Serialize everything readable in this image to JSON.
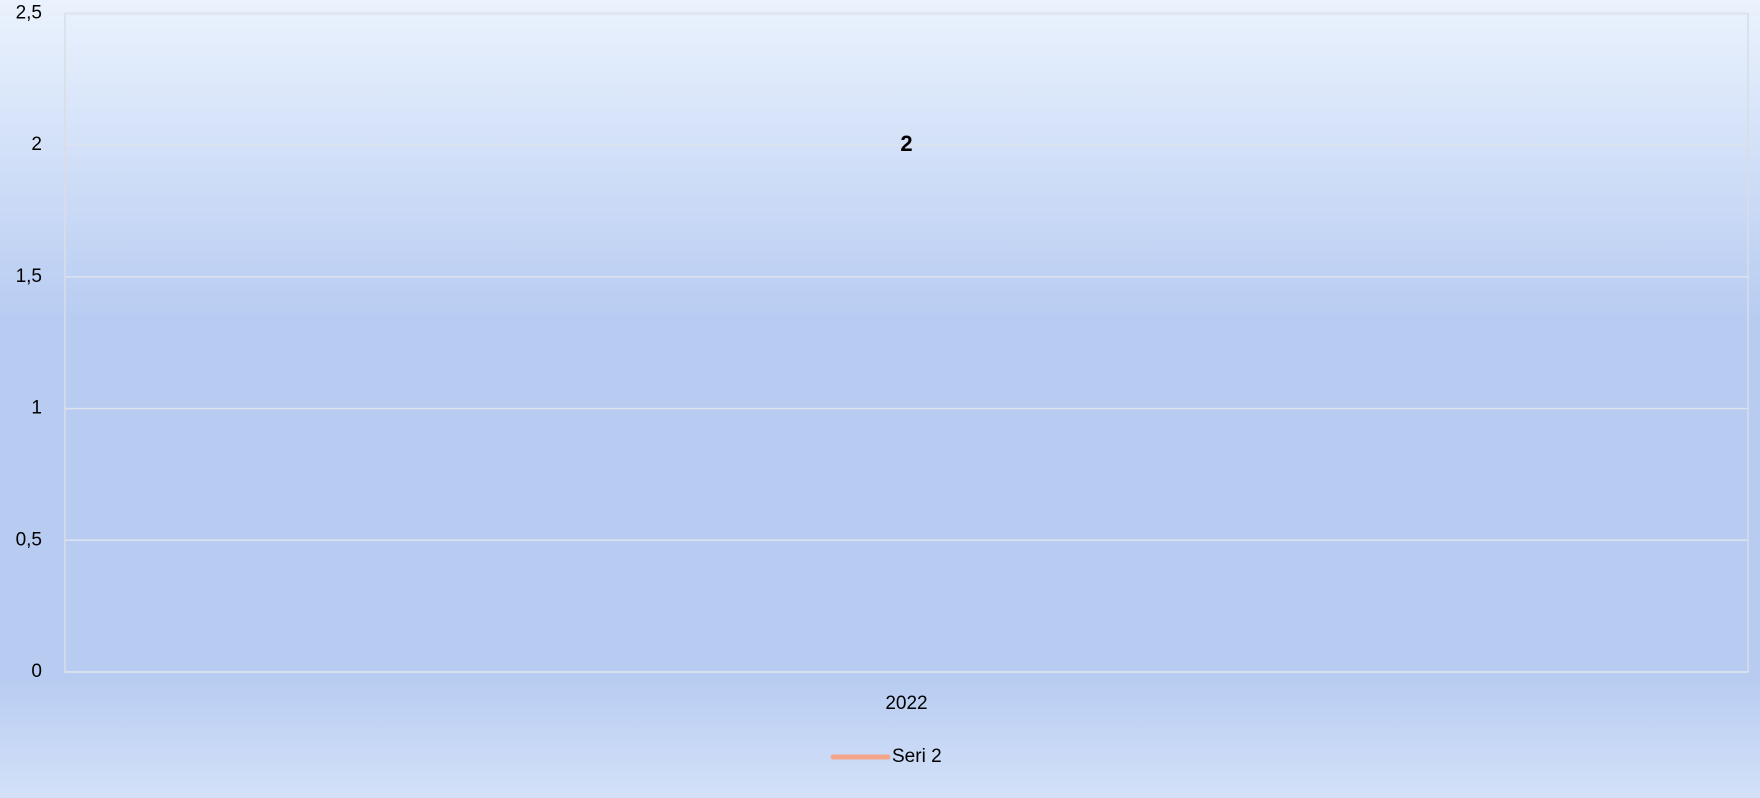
{
  "chart_data": {
    "type": "line",
    "categories": [
      "2022"
    ],
    "series": [
      {
        "name": "Seri 2",
        "color": "#f4a58a",
        "values": [
          2
        ]
      }
    ],
    "ylim": [
      0,
      2.5
    ],
    "yticks": [
      0,
      {
        "value": 0.5,
        "label": "0,5"
      },
      1,
      {
        "value": 1.5,
        "label": "1,5"
      },
      2,
      {
        "value": 2.5,
        "label": "2,5"
      }
    ],
    "grid": true,
    "legend": "bottom"
  }
}
